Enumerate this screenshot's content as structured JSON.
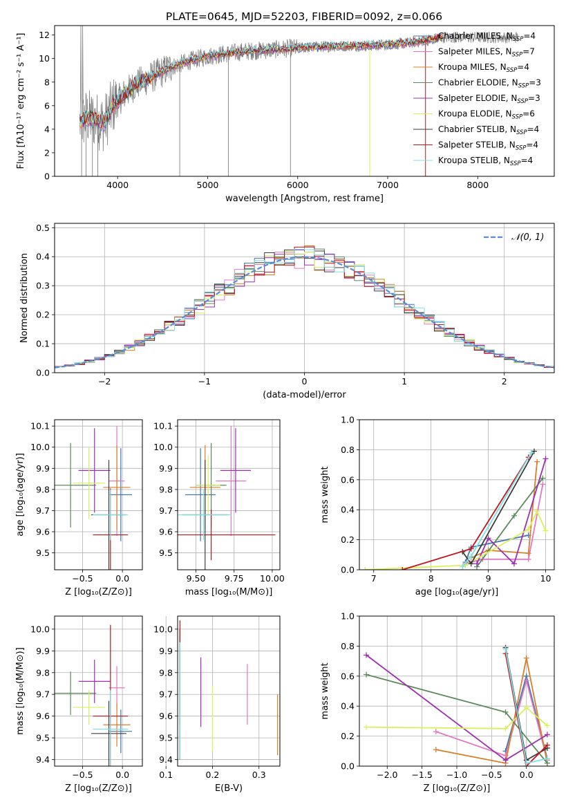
{
  "title": "PLATE=0645, MJD=52203, FIBERID=0092, z=0.066",
  "colors": [
    "#4477aa",
    "#e377c2",
    "#d87f2a",
    "#5a8a5a",
    "#9b2fae",
    "#d9ef5c",
    "#3c3c3c",
    "#c0141a",
    "#80dfe6"
  ],
  "chart_data": [
    {
      "type": "line",
      "xlabel": "wavelength [Angstrom, rest frame]",
      "ylabel": "Flux [fλ10⁻¹⁷ erg cm⁻² s⁻¹ A⁻¹]",
      "xlim": [
        3300,
        8850
      ],
      "ylim": [
        0,
        12.8
      ],
      "xticks": [
        "4000",
        "5000",
        "6000",
        "7000",
        "8000"
      ],
      "yticks": [
        "0",
        "2",
        "4",
        "6",
        "8",
        "10",
        "12"
      ],
      "legend_position": "top-right",
      "series": [
        {
          "name": "Chabrier MILES, N_SSP=4"
        },
        {
          "name": "Salpeter MILES, N_SSP=7"
        },
        {
          "name": "Kroupa MILES, N_SSP=4"
        },
        {
          "name": "Chabrier ELODIE, N_SSP=3"
        },
        {
          "name": "Salpeter ELODIE, N_SSP=3"
        },
        {
          "name": "Kroupa ELODIE, N_SSP=6"
        },
        {
          "name": "Chabrier STELIB, N_SSP=4"
        },
        {
          "name": "Salpeter STELIB, N_SSP=4"
        },
        {
          "name": "Kroupa STELIB, N_SSP=4"
        }
      ],
      "continuum": {
        "x": [
          3580,
          3650,
          3750,
          3850,
          3950,
          4050,
          4200,
          4400,
          4600,
          4800,
          5000,
          5200,
          5400,
          5600,
          5800,
          6000,
          6200,
          6400,
          6600,
          6800,
          7000,
          7200,
          7400,
          7600
        ],
        "y": [
          4.5,
          5.0,
          4.8,
          4.5,
          6.0,
          6.8,
          7.8,
          8.5,
          9.3,
          9.8,
          10.2,
          10.4,
          10.6,
          10.7,
          10.8,
          10.9,
          11.0,
          11.05,
          11.1,
          11.1,
          11.2,
          11.3,
          11.5,
          11.8
        ]
      }
    },
    {
      "type": "step",
      "xlabel": "(data-model)/error",
      "ylabel": "Normed distribution",
      "xlim": [
        -2.5,
        2.5
      ],
      "ylim": [
        0,
        0.515
      ],
      "xticks": [
        "−2",
        "−1",
        "0",
        "1",
        "2"
      ],
      "yticks": [
        "0.0",
        "0.1",
        "0.2",
        "0.3",
        "0.4",
        "0.5"
      ],
      "legend": "𝒩(0, 1)",
      "legend_position": "top-right"
    },
    {
      "type": "errorbar",
      "xlabel": "Z [log₁₀(Z/Z⊙)]",
      "ylabel": "age  [log₁₀(age/yr)]",
      "xlim": [
        -0.85,
        0.25
      ],
      "ylim": [
        9.42,
        10.13
      ],
      "xticks": [
        "−0.5",
        "0.0"
      ],
      "yticks": [
        "9.5",
        "9.6",
        "9.7",
        "9.8",
        "9.9",
        "10.0",
        "10.1"
      ],
      "points": [
        {
          "x": -0.02,
          "y": 9.775,
          "xerr": 0.14,
          "yerr": 0.22,
          "c": 0
        },
        {
          "x": -0.07,
          "y": 9.84,
          "xerr": 0.1,
          "yerr": 0.26,
          "c": 1
        },
        {
          "x": -0.07,
          "y": 9.81,
          "xerr": 0.17,
          "yerr": 0.2,
          "c": 2
        },
        {
          "x": -0.65,
          "y": 9.82,
          "xerr": 0.32,
          "yerr": 0.2,
          "c": 3
        },
        {
          "x": -0.35,
          "y": 9.89,
          "xerr": 0.2,
          "yerr": 0.2,
          "c": 4
        },
        {
          "x": -0.42,
          "y": 9.83,
          "xerr": 0.2,
          "yerr": 0.17,
          "c": 5
        },
        {
          "x": -0.17,
          "y": 9.68,
          "xerr": 0.22,
          "yerr": 0.26,
          "c": 6
        },
        {
          "x": -0.15,
          "y": 9.585,
          "xerr": 0.22,
          "yerr": 0.22,
          "c": 7
        },
        {
          "x": -0.15,
          "y": 9.68,
          "xerr": 0.22,
          "yerr": 0.12,
          "c": 8
        }
      ]
    },
    {
      "type": "errorbar",
      "xlabel": "mass [log₁₀(M/M⊙)]",
      "xlim": [
        9.38,
        10.05
      ],
      "ylim": [
        9.42,
        10.13
      ],
      "xticks": [
        "9.50",
        "9.75",
        "10.00"
      ],
      "yticks": [
        "9.5",
        "9.6",
        "9.7",
        "9.8",
        "9.9",
        "10.0",
        "10.1"
      ],
      "points": [
        {
          "x": 9.53,
          "y": 9.775,
          "xerr": 0.1,
          "yerr": 0.22,
          "c": 0
        },
        {
          "x": 9.73,
          "y": 9.84,
          "xerr": 0.1,
          "yerr": 0.26,
          "c": 1
        },
        {
          "x": 9.56,
          "y": 9.81,
          "xerr": 0.1,
          "yerr": 0.2,
          "c": 2
        },
        {
          "x": 9.6,
          "y": 9.82,
          "xerr": 0.1,
          "yerr": 0.2,
          "c": 3
        },
        {
          "x": 9.76,
          "y": 9.89,
          "xerr": 0.1,
          "yerr": 0.2,
          "c": 4
        },
        {
          "x": 9.58,
          "y": 9.82,
          "xerr": 0.08,
          "yerr": 0.14,
          "c": 5
        },
        {
          "x": 9.56,
          "y": 9.68,
          "xerr": 0.15,
          "yerr": 0.26,
          "c": 6
        },
        {
          "x": 9.6,
          "y": 9.585,
          "xerr": 0.42,
          "yerr": 0.12,
          "c": 7
        },
        {
          "x": 9.55,
          "y": 9.68,
          "xerr": 0.18,
          "yerr": 0.12,
          "c": 8
        }
      ]
    },
    {
      "type": "line",
      "xlabel": "age  [log₁₀(age/yr)]",
      "ylabel": "mass weight",
      "xlim": [
        6.75,
        10.15
      ],
      "ylim": [
        0,
        1.0
      ],
      "xticks": [
        "7",
        "8",
        "9",
        "10"
      ],
      "yticks": [
        "0.0",
        "0.2",
        "0.4",
        "0.6",
        "0.8",
        "1.0"
      ],
      "series": [
        {
          "c": 0,
          "x": [
            8.6,
            8.7,
            9.7
          ],
          "y": [
            0.05,
            0.15,
            0.23
          ]
        },
        {
          "c": 1,
          "x": [
            8.6,
            8.9,
            9.7,
            9.95
          ],
          "y": [
            0.04,
            0.07,
            0.07,
            0.57
          ]
        },
        {
          "c": 2,
          "x": [
            8.7,
            9.0,
            9.7,
            9.85
          ],
          "y": [
            0.08,
            0.13,
            0.11,
            0.72
          ]
        },
        {
          "c": 3,
          "x": [
            8.8,
            9.45,
            9.95
          ],
          "y": [
            0.02,
            0.36,
            0.61
          ]
        },
        {
          "c": 4,
          "x": [
            8.8,
            9.0,
            9.45,
            10.0
          ],
          "y": [
            0.04,
            0.21,
            0.04,
            0.74
          ]
        },
        {
          "c": 5,
          "x": [
            6.85,
            8.6,
            9.7,
            9.85,
            10.0
          ],
          "y": [
            0.0,
            0.03,
            0.27,
            0.39,
            0.26
          ]
        },
        {
          "c": 6,
          "x": [
            8.55,
            8.7,
            9.8
          ],
          "y": [
            0.12,
            0.04,
            0.79
          ]
        },
        {
          "c": 7,
          "x": [
            7.5,
            8.7,
            9.7
          ],
          "y": [
            0.0,
            0.14,
            0.75
          ]
        },
        {
          "c": 8,
          "x": [
            8.55,
            8.7,
            9.75
          ],
          "y": [
            0.02,
            0.09,
            0.78
          ]
        }
      ]
    },
    {
      "type": "errorbar",
      "xlabel": "Z [log₁₀(Z/Z⊙)]",
      "ylabel": "mass [log₁₀(M/M⊙)]",
      "xlim": [
        -0.85,
        0.25
      ],
      "ylim": [
        9.37,
        10.06
      ],
      "xticks": [
        "−0.5",
        "0.0"
      ],
      "yticks": [
        "9.4",
        "9.5",
        "9.6",
        "9.7",
        "9.8",
        "9.9",
        "10.0"
      ],
      "points": [
        {
          "x": -0.02,
          "y": 9.53,
          "xerr": 0.14,
          "yerr": 0.1,
          "c": 0
        },
        {
          "x": -0.07,
          "y": 9.73,
          "xerr": 0.1,
          "yerr": 0.1,
          "c": 1
        },
        {
          "x": -0.07,
          "y": 9.56,
          "xerr": 0.17,
          "yerr": 0.1,
          "c": 2
        },
        {
          "x": -0.65,
          "y": 9.705,
          "xerr": 0.32,
          "yerr": 0.1,
          "c": 3
        },
        {
          "x": -0.35,
          "y": 9.76,
          "xerr": 0.2,
          "yerr": 0.1,
          "c": 4
        },
        {
          "x": -0.42,
          "y": 9.64,
          "xerr": 0.2,
          "yerr": 0.08,
          "c": 5
        },
        {
          "x": -0.17,
          "y": 9.52,
          "xerr": 0.22,
          "yerr": 0.15,
          "c": 6
        },
        {
          "x": -0.15,
          "y": 9.6,
          "xerr": 0.22,
          "yerr": 0.42,
          "c": 7
        },
        {
          "x": -0.15,
          "y": 9.54,
          "xerr": 0.22,
          "yerr": 0.18,
          "c": 8
        }
      ]
    },
    {
      "type": "errorbar",
      "xlabel": "E(B-V)",
      "xlim": [
        0.125,
        0.345
      ],
      "ylim": [
        9.37,
        10.06
      ],
      "xticks": [
        "0.1",
        "0.2",
        "0.3"
      ],
      "yticks": [
        "9.4",
        "9.5",
        "9.6",
        "9.7",
        "9.8",
        "9.9",
        "10.0"
      ],
      "points": [
        {
          "x": 0.13,
          "y": 9.7,
          "xerr": 0,
          "yerr": 0.3,
          "c": 0
        },
        {
          "x": 0.275,
          "y": 9.7,
          "xerr": 0,
          "yerr": 0.14,
          "c": 1
        },
        {
          "x": 0.34,
          "y": 9.56,
          "xerr": 0,
          "yerr": 0.14,
          "c": 2
        },
        {
          "x": 0.13,
          "y": 9.68,
          "xerr": 0,
          "yerr": 0.28,
          "c": 3
        },
        {
          "x": 0.175,
          "y": 9.71,
          "xerr": 0,
          "yerr": 0.16,
          "c": 4
        },
        {
          "x": 0.2,
          "y": 9.59,
          "xerr": 0,
          "yerr": 0.15,
          "c": 5
        },
        {
          "x": 0.13,
          "y": 9.7,
          "xerr": 0,
          "yerr": 0.3,
          "c": 6
        },
        {
          "x": 0.13,
          "y": 9.8,
          "xerr": 0,
          "yerr": 0.24,
          "c": 7
        },
        {
          "x": 0.13,
          "y": 9.67,
          "xerr": 0,
          "yerr": 0.27,
          "c": 8
        }
      ]
    },
    {
      "type": "line",
      "xlabel": "Z [log₁₀(Z/Z⊙)]",
      "ylabel": "mass weight",
      "xlim": [
        -2.4,
        0.4
      ],
      "ylim": [
        0,
        1.0
      ],
      "xticks": [
        "−2.0",
        "−1.5",
        "−1.0",
        "−0.5",
        "0.0"
      ],
      "yticks": [
        "0.0",
        "0.2",
        "0.4",
        "0.6",
        "0.8",
        "1.0"
      ],
      "series": [
        {
          "c": 0,
          "x": [
            -0.3,
            0.0,
            0.3
          ],
          "y": [
            0.1,
            0.6,
            0.05
          ]
        },
        {
          "c": 1,
          "x": [
            -1.3,
            -0.3,
            0.0,
            0.3
          ],
          "y": [
            0.23,
            0.07,
            0.57,
            0.04
          ]
        },
        {
          "c": 2,
          "x": [
            -1.3,
            -0.3,
            0.0,
            0.3
          ],
          "y": [
            0.11,
            0.02,
            0.72,
            0.02
          ]
        },
        {
          "c": 3,
          "x": [
            -2.3,
            -0.3,
            0.3
          ],
          "y": [
            0.61,
            0.36,
            0.02
          ]
        },
        {
          "c": 4,
          "x": [
            -2.3,
            -0.3,
            0.3
          ],
          "y": [
            0.74,
            0.04,
            0.21
          ]
        },
        {
          "c": 5,
          "x": [
            -2.3,
            -0.3,
            0.0,
            0.3
          ],
          "y": [
            0.26,
            0.25,
            0.39,
            0.27
          ]
        },
        {
          "c": 6,
          "x": [
            -0.3,
            0.0,
            0.3
          ],
          "y": [
            0.79,
            0.04,
            0.12
          ]
        },
        {
          "c": 7,
          "x": [
            -0.3,
            0.0,
            0.3
          ],
          "y": [
            0.75,
            0.0,
            0.14
          ]
        },
        {
          "c": 8,
          "x": [
            -0.3,
            0.0,
            0.3
          ],
          "y": [
            0.78,
            0.02,
            0.05
          ]
        }
      ]
    }
  ]
}
